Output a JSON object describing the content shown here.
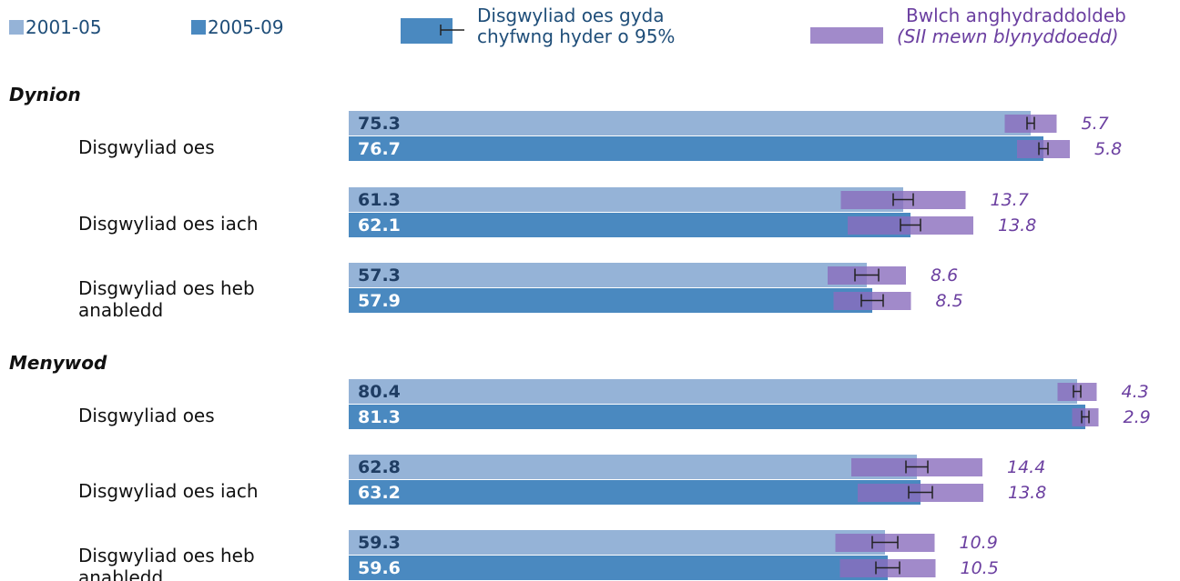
{
  "chart_data": {
    "type": "bar",
    "legend": {
      "ci": "Disgwyliad oes gyda chyfwng hyder o 95%",
      "sii_title": "Bwlch anghydraddoldeb",
      "sii_subtitle": "(SII mewn blynyddoedd)",
      "sii_color": "#8a6dbd",
      "sii_label_color": "#6b3fa0"
    },
    "series": [
      {
        "name": "2001-05",
        "color": "#95b3d7",
        "label_color": "#1f3d63"
      },
      {
        "name": "2005-09",
        "color": "#4a89c0",
        "label_color": "#ffffff"
      }
    ],
    "groups": [
      {
        "name": "Dynion",
        "categories": [
          "Disgwyliad oes",
          "Disgwyliad oes iach",
          "Disgwyliad oes heb anabledd"
        ],
        "series": [
          {
            "values": [
              75.3,
              61.3,
              57.3
            ],
            "ci": [
              0.4,
              1.1,
              1.3
            ],
            "sii": [
              5.7,
              13.7,
              8.6
            ]
          },
          {
            "values": [
              76.7,
              62.1,
              57.9
            ],
            "ci": [
              0.5,
              1.1,
              1.2
            ],
            "sii": [
              5.8,
              13.8,
              8.5
            ]
          }
        ]
      },
      {
        "name": "Menywod",
        "categories": [
          "Disgwyliad oes",
          "Disgwyliad oes iach",
          "Disgwyliad oes heb anabledd"
        ],
        "series": [
          {
            "values": [
              80.4,
              62.8,
              59.3
            ],
            "ci": [
              0.4,
              1.2,
              1.4
            ],
            "sii": [
              4.3,
              14.4,
              10.9
            ]
          },
          {
            "values": [
              81.3,
              63.2,
              59.6
            ],
            "ci": [
              0.4,
              1.3,
              1.3
            ],
            "sii": [
              2.9,
              13.8,
              10.5
            ]
          }
        ]
      }
    ]
  }
}
